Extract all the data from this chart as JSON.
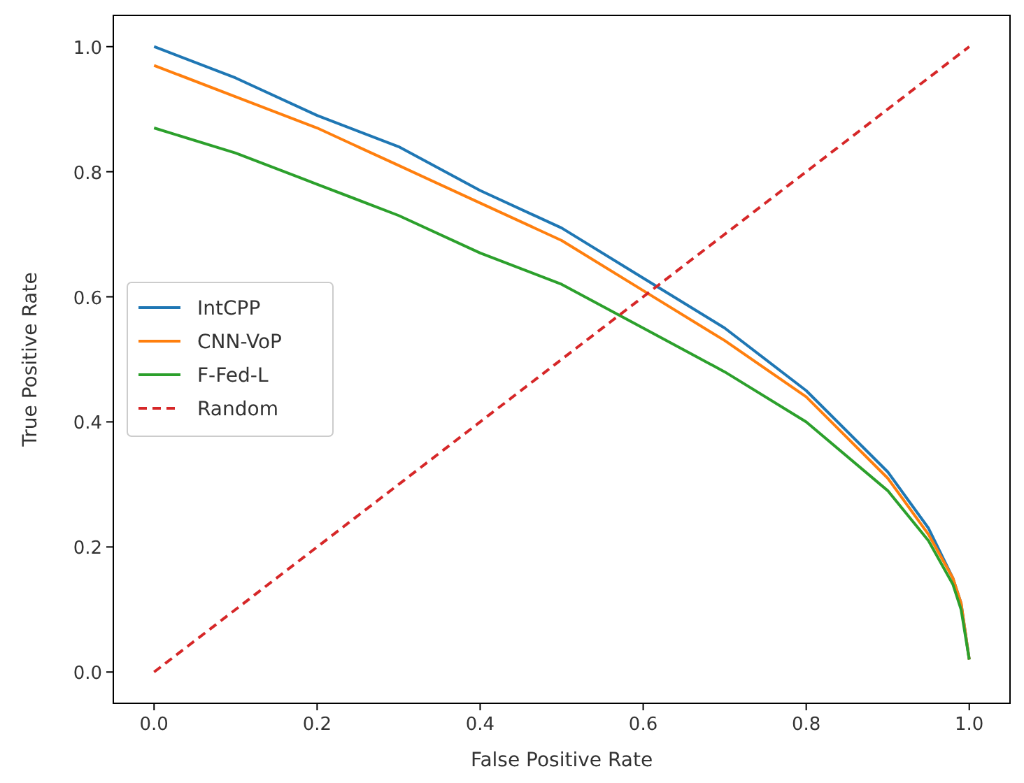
{
  "chart_data": {
    "type": "line",
    "xlabel": "False Positive Rate",
    "ylabel": "True Positive Rate",
    "xlim": [
      -0.05,
      1.05
    ],
    "ylim": [
      -0.05,
      1.05
    ],
    "xticks": [
      {
        "value": 0,
        "label": "0.0"
      },
      {
        "value": 0.2,
        "label": "0.2"
      },
      {
        "value": 0.4,
        "label": "0.4"
      },
      {
        "value": 0.6,
        "label": "0.6"
      },
      {
        "value": 0.8,
        "label": "0.8"
      },
      {
        "value": 1,
        "label": "1.0"
      }
    ],
    "yticks": [
      {
        "value": 0,
        "label": "0.0"
      },
      {
        "value": 0.2,
        "label": "0.2"
      },
      {
        "value": 0.4,
        "label": "0.4"
      },
      {
        "value": 0.6,
        "label": "0.6"
      },
      {
        "value": 0.8,
        "label": "0.8"
      },
      {
        "value": 1,
        "label": "1.0"
      }
    ],
    "x": [
      0,
      0.1,
      0.2,
      0.3,
      0.4,
      0.5,
      0.6,
      0.7,
      0.8,
      0.9,
      0.95,
      0.98,
      0.99,
      1.0
    ],
    "legend": "center left",
    "grid": false,
    "series": [
      {
        "name": "IntCPP",
        "color": "#1f77b4",
        "values": [
          1.0,
          0.95,
          0.89,
          0.84,
          0.77,
          0.71,
          0.63,
          0.55,
          0.45,
          0.32,
          0.23,
          0.15,
          0.11,
          0.02
        ]
      },
      {
        "name": "CNN-VoP",
        "color": "#ff7f0e",
        "values": [
          0.97,
          0.92,
          0.87,
          0.81,
          0.75,
          0.69,
          0.61,
          0.53,
          0.44,
          0.31,
          0.22,
          0.15,
          0.11,
          0.02
        ]
      },
      {
        "name": "F-Fed-L",
        "color": "#2ca02c",
        "values": [
          0.87,
          0.83,
          0.78,
          0.73,
          0.67,
          0.62,
          0.55,
          0.48,
          0.4,
          0.29,
          0.21,
          0.14,
          0.1,
          0.02
        ]
      },
      {
        "name": "Random",
        "color": "#d62728",
        "x": [
          0,
          1
        ],
        "values": [
          0,
          1
        ],
        "line_style": "dashed"
      }
    ]
  }
}
